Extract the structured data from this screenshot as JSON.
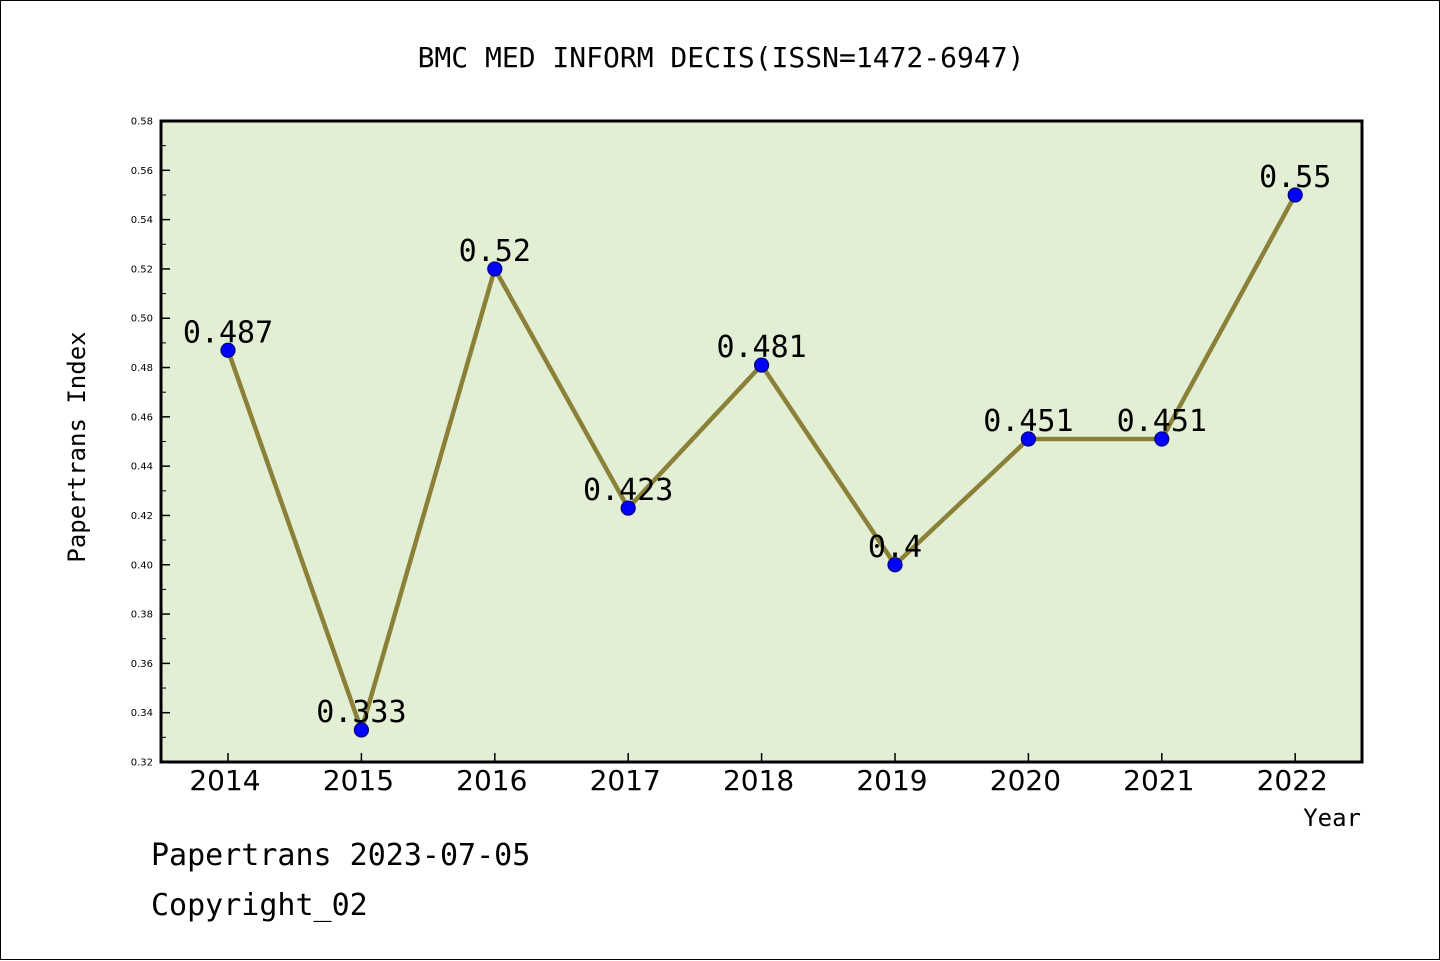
{
  "chart_data": {
    "type": "line",
    "title": "BMC MED INFORM DECIS(ISSN=1472-6947)",
    "xlabel": "Year",
    "ylabel": "Papertrans Index",
    "categories": [
      "2014",
      "2015",
      "2016",
      "2017",
      "2018",
      "2019",
      "2020",
      "2021",
      "2022"
    ],
    "series": [
      {
        "values": [
          0.487,
          0.333,
          0.52,
          0.423,
          0.481,
          0.4,
          0.451,
          0.451,
          0.55
        ],
        "data_labels": [
          "0.487",
          "0.333",
          "0.52",
          "0.423",
          "0.481",
          "0.4",
          "0.451",
          "0.451",
          "0.55"
        ]
      }
    ],
    "ylim": [
      0.32,
      0.58
    ],
    "yticks": [
      "0.32",
      "0.34",
      "0.36",
      "0.38",
      "0.40",
      "0.42",
      "0.44",
      "0.46",
      "0.48",
      "0.50",
      "0.52",
      "0.54",
      "0.56",
      "0.58"
    ],
    "grid": false,
    "legend": "none",
    "colors": {
      "plot_background": "#e2efd4",
      "line": "#8b8038",
      "marker": "#0000ff",
      "marker_edge": "#00007a"
    }
  },
  "footer": {
    "line1": "Papertrans 2023-07-05",
    "line2": "Copyright_02"
  }
}
